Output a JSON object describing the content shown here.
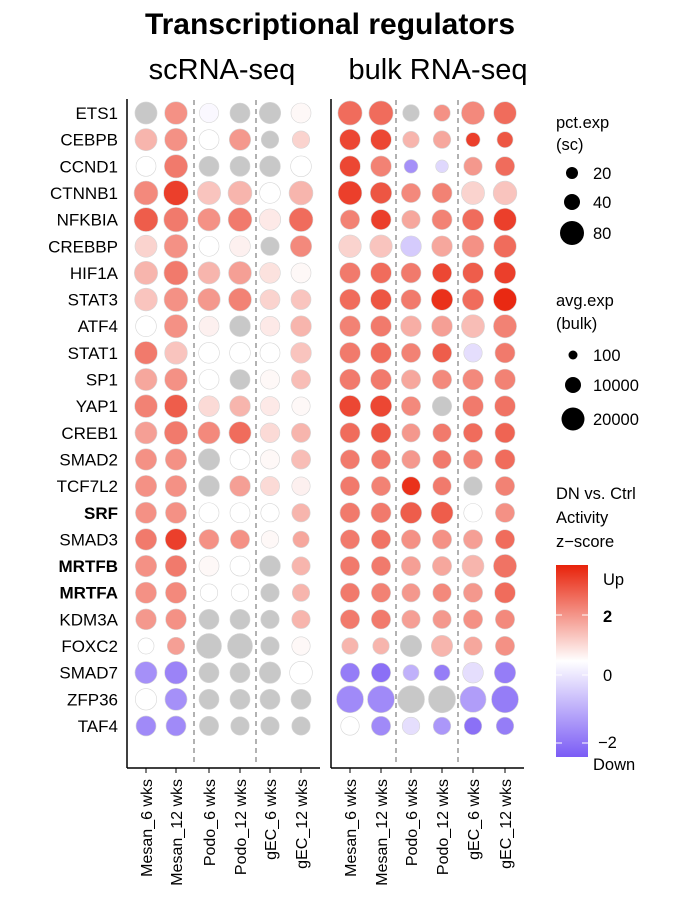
{
  "chart_data": {
    "type": "dotplot",
    "title": "Transcriptional regulators",
    "panels": [
      {
        "title": "scRNA-seq",
        "size_variable": "pct.exp (sc)",
        "values": [
          [
            null,
            1.5,
            -0.1,
            null,
            null,
            0.1
          ],
          [
            1.0,
            1.5,
            0.0,
            1.4,
            null,
            0.6
          ],
          [
            0.0,
            1.8,
            null,
            null,
            null,
            0.0
          ],
          [
            1.6,
            2.6,
            0.8,
            1.0,
            0.0,
            1.0
          ],
          [
            2.2,
            1.8,
            1.5,
            1.8,
            0.3,
            2.0
          ],
          [
            0.6,
            1.5,
            0.0,
            0.2,
            null,
            1.6
          ],
          [
            1.0,
            1.8,
            1.0,
            1.3,
            0.4,
            0.1
          ],
          [
            0.8,
            1.5,
            1.4,
            1.7,
            0.6,
            0.8
          ],
          [
            0.0,
            1.5,
            0.2,
            null,
            0.3,
            1.0
          ],
          [
            1.8,
            0.8,
            0.0,
            0.0,
            0.0,
            0.8
          ],
          [
            1.2,
            1.5,
            0.0,
            null,
            0.1,
            0.9
          ],
          [
            1.7,
            2.2,
            0.5,
            1.0,
            0.3,
            0.1
          ],
          [
            1.3,
            1.8,
            1.6,
            2.0,
            0.5,
            1.0
          ],
          [
            1.5,
            1.5,
            null,
            0.0,
            0.1,
            0.9
          ],
          [
            1.5,
            1.5,
            null,
            1.3,
            0.5,
            0.2
          ],
          [
            1.5,
            1.5,
            0.0,
            0.0,
            0.0,
            1.0
          ],
          [
            1.8,
            2.6,
            1.5,
            1.5,
            0.1,
            1.2
          ],
          [
            1.5,
            1.8,
            0.1,
            0.0,
            null,
            1.0
          ],
          [
            1.5,
            1.6,
            0.0,
            0.0,
            null,
            1.0
          ],
          [
            1.4,
            1.5,
            null,
            null,
            null,
            1.0
          ],
          [
            0.0,
            1.3,
            null,
            null,
            null,
            0.1
          ],
          [
            -1.7,
            -1.9,
            null,
            null,
            null,
            0.0
          ],
          [
            0.0,
            -1.7,
            null,
            null,
            null,
            null
          ],
          [
            -1.8,
            -1.8,
            null,
            null,
            null,
            null
          ]
        ]
      },
      {
        "title": "bulk RNA-seq",
        "size_variable": "avg.exp (bulk)",
        "values": [
          [
            2.0,
            2.0,
            null,
            1.5,
            1.6,
            2.0
          ],
          [
            2.5,
            2.5,
            1.0,
            1.2,
            2.6,
            2.3
          ],
          [
            2.5,
            1.7,
            -1.7,
            -0.6,
            1.4,
            2.0
          ],
          [
            2.6,
            2.3,
            1.6,
            1.7,
            0.6,
            0.8
          ],
          [
            1.7,
            2.6,
            1.2,
            1.7,
            2.0,
            2.6
          ],
          [
            0.6,
            0.8,
            -0.8,
            1.2,
            1.5,
            2.0
          ],
          [
            1.8,
            2.0,
            1.8,
            2.5,
            2.2,
            2.6
          ],
          [
            2.0,
            2.3,
            1.8,
            2.8,
            2.0,
            2.9
          ],
          [
            1.7,
            1.8,
            1.1,
            1.3,
            0.9,
            1.7
          ],
          [
            1.8,
            2.0,
            1.7,
            2.2,
            -0.5,
            1.8
          ],
          [
            1.8,
            1.8,
            1.2,
            1.6,
            1.6,
            1.7
          ],
          [
            2.5,
            2.5,
            1.6,
            null,
            1.8,
            1.9
          ],
          [
            2.0,
            2.3,
            1.4,
            1.8,
            2.0,
            2.1
          ],
          [
            1.8,
            1.8,
            1.4,
            1.8,
            1.7,
            2.0
          ],
          [
            1.8,
            1.7,
            2.8,
            1.8,
            null,
            1.7
          ],
          [
            1.8,
            1.8,
            2.2,
            2.2,
            0.0,
            1.5
          ],
          [
            1.8,
            1.9,
            1.5,
            1.5,
            1.3,
            2.0
          ],
          [
            1.8,
            1.8,
            1.3,
            1.2,
            1.0,
            1.9
          ],
          [
            1.8,
            1.7,
            1.4,
            1.6,
            1.4,
            2.0
          ],
          [
            1.8,
            1.8,
            1.3,
            1.4,
            1.5,
            1.6
          ],
          [
            1.0,
            1.0,
            null,
            1.0,
            1.2,
            1.5
          ],
          [
            -2.0,
            -2.2,
            -1.2,
            -2.0,
            -0.5,
            -2.0
          ],
          [
            -1.8,
            -1.8,
            null,
            null,
            -1.5,
            -2.0
          ],
          [
            0.0,
            -1.8,
            -0.5,
            -1.6,
            -2.2,
            -2.0
          ]
        ]
      }
    ],
    "genes": [
      "ETS1",
      "CEBPB",
      "CCND1",
      "CTNNB1",
      "NFKBIA",
      "CREBBP",
      "HIF1A",
      "STAT3",
      "ATF4",
      "STAT1",
      "SP1",
      "YAP1",
      "CREB1",
      "SMAD2",
      "TCF7L2",
      "SRF",
      "SMAD3",
      "MRTFB",
      "MRTFA",
      "KDM3A",
      "FOXC2",
      "SMAD7",
      "ZFP36",
      "TAF4"
    ],
    "bold_genes": [
      "SRF",
      "MRTFB",
      "MRTFA"
    ],
    "x_categories": [
      "Mesan_6 wks",
      "Mesan_12 wks",
      "Podo_6 wks",
      "Podo_12 wks",
      "gEC_6 wks",
      "gEC_12 wks"
    ],
    "sizes_sc": [
      [
        55,
        60,
        35,
        40,
        50,
        40
      ],
      [
        55,
        60,
        40,
        50,
        25,
        25
      ],
      [
        40,
        65,
        40,
        40,
        45,
        45
      ],
      [
        70,
        78,
        65,
        70,
        45,
        70
      ],
      [
        70,
        75,
        60,
        68,
        50,
        70
      ],
      [
        55,
        68,
        40,
        45,
        30,
        50
      ],
      [
        65,
        72,
        55,
        62,
        45,
        40
      ],
      [
        60,
        70,
        58,
        62,
        40,
        40
      ],
      [
        45,
        65,
        40,
        45,
        38,
        45
      ],
      [
        60,
        60,
        45,
        45,
        40,
        45
      ],
      [
        55,
        60,
        40,
        40,
        35,
        35
      ],
      [
        60,
        62,
        45,
        45,
        35,
        30
      ],
      [
        55,
        65,
        55,
        55,
        38,
        35
      ],
      [
        50,
        50,
        50,
        40,
        35,
        35
      ],
      [
        50,
        50,
        45,
        45,
        35,
        30
      ],
      [
        48,
        48,
        40,
        40,
        30,
        30
      ],
      [
        50,
        50,
        40,
        35,
        25,
        20
      ],
      [
        50,
        50,
        40,
        40,
        45,
        30
      ],
      [
        48,
        48,
        25,
        25,
        30,
        25
      ],
      [
        45,
        45,
        40,
        40,
        30,
        30
      ],
      [
        18,
        25,
        80,
        80,
        30,
        30
      ],
      [
        55,
        60,
        40,
        40,
        50,
        60
      ],
      [
        50,
        55,
        40,
        40,
        40,
        40
      ],
      [
        40,
        40,
        35,
        30,
        30,
        30
      ]
    ],
    "sizes_bulk": [
      [
        14000,
        14000,
        3000,
        3000,
        12000,
        11000
      ],
      [
        8000,
        8000,
        3000,
        4000,
        1200,
        2500
      ],
      [
        8000,
        8000,
        1000,
        500,
        5000,
        6000
      ],
      [
        13000,
        9000,
        6000,
        7000,
        12000,
        13000
      ],
      [
        6000,
        7000,
        5000,
        7000,
        9000,
        11000
      ],
      [
        11000,
        11000,
        8000,
        8000,
        10000,
        11000
      ],
      [
        8000,
        8000,
        7000,
        6000,
        8000,
        9000
      ],
      [
        8000,
        8000,
        7000,
        9000,
        9000,
        12000
      ],
      [
        8000,
        8000,
        8000,
        8000,
        12000,
        12000
      ],
      [
        8000,
        8000,
        6000,
        6000,
        5000,
        7000
      ],
      [
        8000,
        8000,
        6000,
        6000,
        8000,
        8000
      ],
      [
        9000,
        9000,
        6000,
        6000,
        8000,
        8000
      ],
      [
        7000,
        7000,
        5000,
        5000,
        6000,
        7000
      ],
      [
        6000,
        6000,
        5000,
        5000,
        6000,
        7000
      ],
      [
        6000,
        6000,
        5000,
        5000,
        5000,
        6000
      ],
      [
        7000,
        7000,
        9000,
        10000,
        5000,
        6000
      ],
      [
        6000,
        6000,
        6000,
        6000,
        6000,
        6000
      ],
      [
        6000,
        6000,
        6000,
        6000,
        10000,
        12000
      ],
      [
        6000,
        6000,
        5000,
        5000,
        6000,
        8000
      ],
      [
        6000,
        6000,
        5000,
        5000,
        6000,
        6000
      ],
      [
        3000,
        3000,
        9000,
        9000,
        5000,
        6000
      ],
      [
        6000,
        6000,
        2500,
        2500,
        8000,
        9000
      ],
      [
        20000,
        20000,
        20000,
        20000,
        18000,
        20000
      ],
      [
        5000,
        6000,
        4000,
        4000,
        4000,
        4000
      ]
    ],
    "na_color": "#c8c8c8",
    "color_scale": {
      "low": "#7b5cf5",
      "mid": "#ffffff",
      "high": "#e8220a",
      "limits": [
        -2.5,
        3
      ]
    },
    "legend": {
      "pct_title_1": "pct.exp",
      "pct_title_2": "(sc)",
      "pct_breaks": [
        20,
        40,
        80
      ],
      "avg_title_1": "avg.exp",
      "avg_title_2": "(bulk)",
      "avg_breaks": [
        100,
        10000,
        20000
      ],
      "color_title_1": "DN vs. Ctrl",
      "color_title_2": "Activity",
      "color_title_3": "z−score",
      "color_up": "Up",
      "color_down": "Down",
      "color_ticks": [
        "2",
        "0",
        "−2"
      ]
    }
  }
}
